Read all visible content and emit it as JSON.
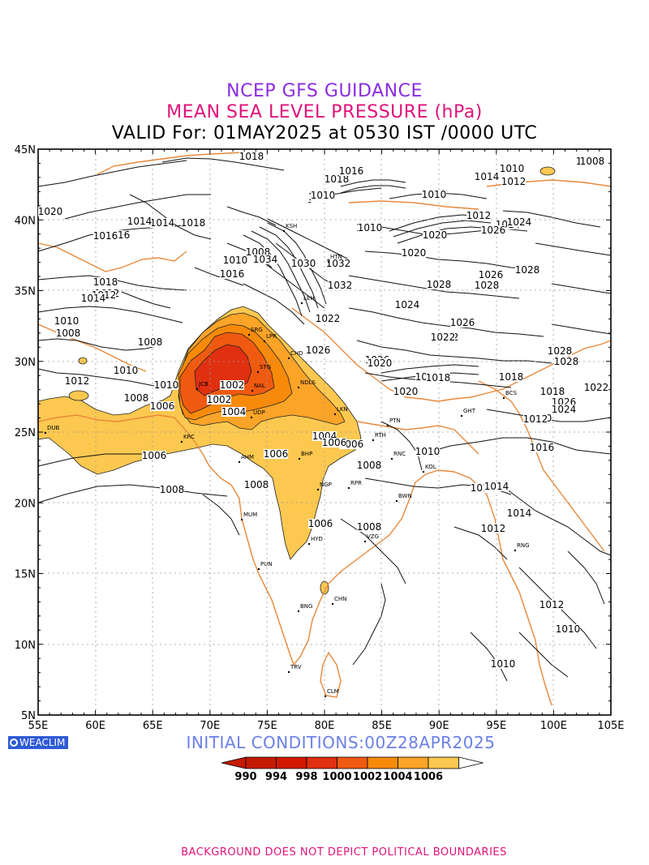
{
  "header": {
    "title": "NCEP GFS GUIDANCE",
    "subtitle": "MEAN SEA LEVEL PRESSURE (hPa)",
    "valid": "VALID For: 01MAY2025 at 0530 IST /0000 UTC"
  },
  "colors": {
    "title": "#8a2be2",
    "subtitle": "#e0127a",
    "coast": "#e8883a",
    "initial": "#6b7fe8",
    "footer": "#e0127a",
    "logo_bg": "#2e5bd6"
  },
  "axes": {
    "lon_ticks": [
      "55E",
      "60E",
      "65E",
      "70E",
      "75E",
      "80E",
      "85E",
      "90E",
      "95E",
      "100E",
      "105E"
    ],
    "lat_ticks": [
      "45N",
      "40N",
      "35N",
      "30N",
      "25N",
      "20N",
      "15N",
      "10N",
      "5N"
    ]
  },
  "contour_labels": [
    "1018",
    "1020",
    "1010",
    "1008",
    "1014",
    "1012",
    "1016",
    "1018",
    "1014",
    "1012",
    "1010",
    "1008",
    "1008",
    "1010",
    "1012",
    "1006",
    "1008",
    "1010",
    "1002",
    "1004",
    "1006",
    "1004",
    "1006",
    "1008",
    "1006",
    "1006",
    "1008",
    "1008",
    "1010",
    "1014",
    "1012",
    "1014",
    "1016",
    "1020",
    "1018",
    "1018",
    "1020",
    "1024",
    "1026",
    "1028",
    "1028",
    "1026",
    "1024",
    "1022",
    "1020",
    "1018",
    "1016",
    "1014",
    "1012",
    "1010",
    "1010",
    "1008",
    "1010",
    "1012",
    "1010",
    "1010",
    "1022",
    "1024",
    "1026",
    "1028",
    "1010",
    "1008",
    "1010",
    "1014",
    "1012",
    "1018",
    "1014",
    "1022",
    "1026",
    "1030",
    "1032",
    "1034",
    "1028",
    "1026",
    "1028",
    "1032",
    "1020",
    "1002",
    "1006",
    "1008",
    "1014",
    "1012",
    "1026",
    "1024",
    "1018",
    "1020",
    "1022",
    "1016",
    "1010",
    "1016"
  ],
  "cities": [
    "DUB",
    "KRC",
    "JCB",
    "AHM",
    "MUM",
    "PUN",
    "BNG",
    "TRV",
    "CLM",
    "CHN",
    "HYD",
    "VZG",
    "BWN",
    "NGP",
    "RPR",
    "BHP",
    "NDLS",
    "LKN",
    "PTN",
    "RTH",
    "RNC",
    "KOL",
    "GHT",
    "SRG",
    "LPR",
    "STG",
    "NAL",
    "UDP",
    "CHD",
    "LEH",
    "HTN",
    "KSH",
    "RNG",
    "BCS"
  ],
  "legend": {
    "labels": [
      "990",
      "994",
      "998",
      "1000",
      "1002",
      "1004",
      "1006"
    ],
    "colors": [
      "#c41a00",
      "#d21900",
      "#e03010",
      "#f05a10",
      "#f88a0a",
      "#fba428",
      "#fcc850"
    ]
  },
  "initial_conditions": "INITIAL CONDITIONS:00Z28APR2025",
  "logo_text": "WEACLIM",
  "footer": "BACKGROUND DOES NOT DEPICT POLITICAL BOUNDARIES"
}
